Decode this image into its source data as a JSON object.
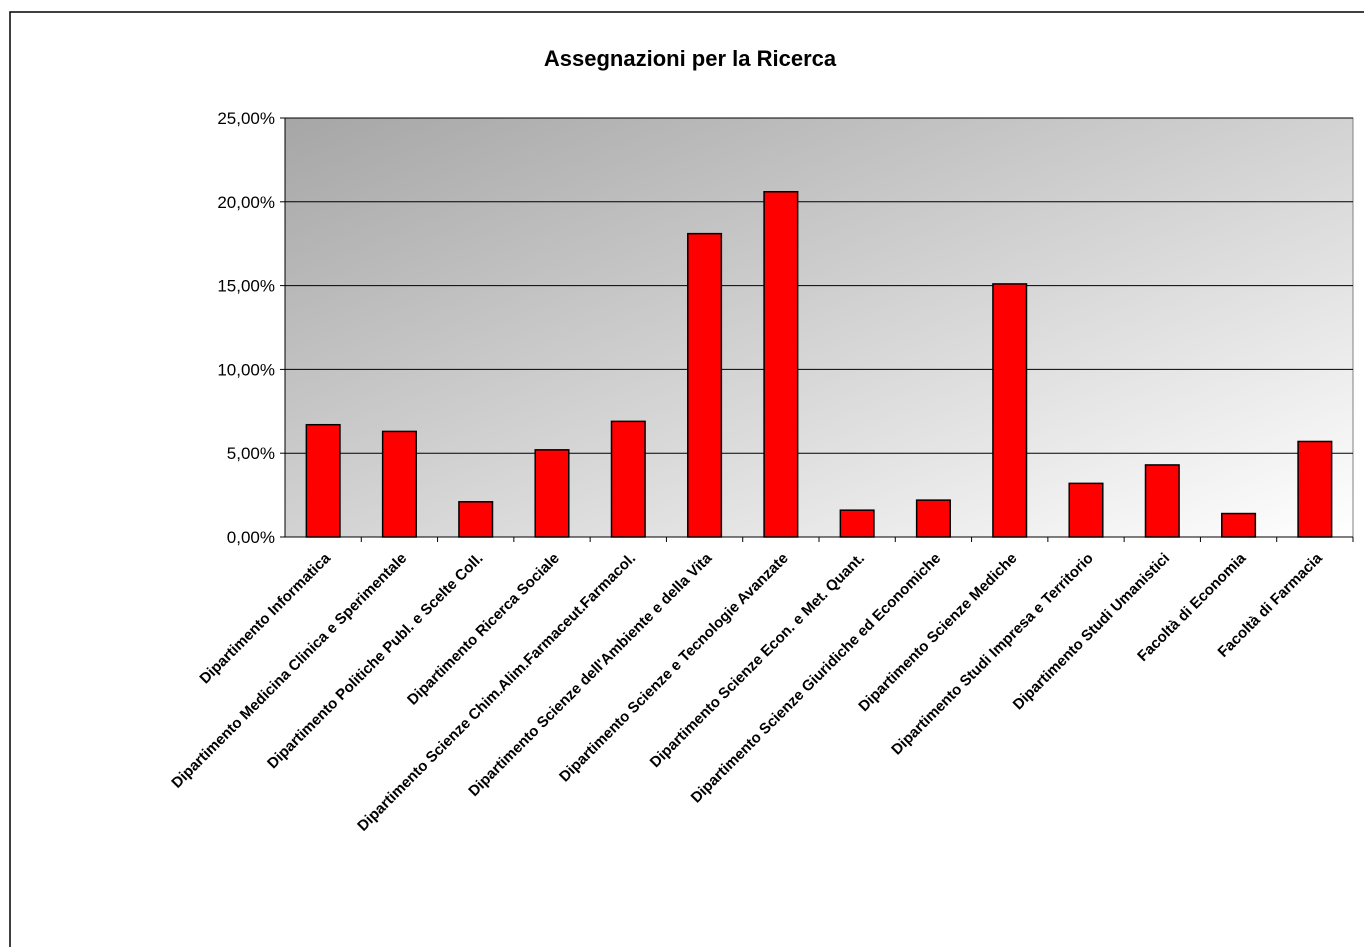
{
  "chart_data": {
    "type": "bar",
    "title": "Assegnazioni per la Ricerca",
    "categories": [
      "Dipartimento Informatica",
      "Dipartimento Medicina Clinica e Sperimentale",
      "Dipartimento Politiche Publ. e Scelte Coll.",
      "Dipartimento Ricerca Sociale",
      "Dipartimento Scienze Chim.Alim.Farmaceut.Farmacol.",
      "Dipartimento Scienze dell'Ambiente e della Vita",
      "Dipartimento Scienze e Tecnologie Avanzate",
      "Dipartimento Scienze Econ. e Met. Quant.",
      "Dipartimento Scienze Giuridiche ed Economiche",
      "Dipartimento Scienze Mediche",
      "Dipartimento Studi Impresa e Territorio",
      "Dipartimento Studi Umanistici",
      "Facoltà di Economia",
      "Facoltà di Farmacia"
    ],
    "values": [
      6.7,
      6.3,
      2.1,
      5.2,
      6.9,
      18.1,
      20.6,
      1.6,
      2.2,
      15.1,
      3.2,
      4.3,
      1.4,
      5.7
    ],
    "color": "#ff0000",
    "ylim": [
      0,
      25
    ],
    "yticks": [
      {
        "value": 0,
        "label": "0,00%"
      },
      {
        "value": 5,
        "label": "5,00%"
      },
      {
        "value": 10,
        "label": "10,00%"
      },
      {
        "value": 15,
        "label": "15,00%"
      },
      {
        "value": 20,
        "label": "20,00%"
      },
      {
        "value": 25,
        "label": "25,00%"
      }
    ],
    "grid": true
  }
}
